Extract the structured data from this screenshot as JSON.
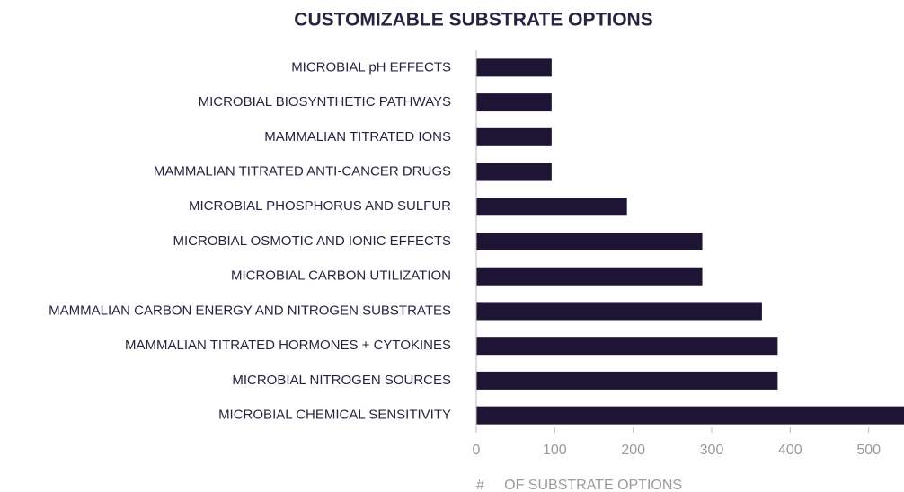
{
  "chart_data": {
    "type": "hbar",
    "title": "CUSTOMIZABLE SUBSTRATE OPTIONS",
    "categories": [
      "MICROBIAL pH EFFECTS",
      "MICROBIAL BIOSYNTHETIC PATHWAYS",
      "MAMMALIAN TITRATED IONS",
      "MAMMALIAN TITRATED ANTI-CANCER DRUGS",
      "MICROBIAL PHOSPHORUS AND SULFUR",
      "MICROBIAL OSMOTIC AND IONIC EFFECTS",
      "MICROBIAL CARBON UTILIZATION",
      "MAMMALIAN CARBON ENERGY AND NITROGEN SUBSTRATES",
      "MAMMALIAN TITRATED HORMONES + CYTOKINES",
      "MICROBIAL NITROGEN SOURCES",
      "MICROBIAL CHEMICAL SENSITIVITY"
    ],
    "values": [
      96,
      96,
      96,
      96,
      192,
      288,
      288,
      364,
      384,
      384,
      545
    ],
    "color": "#1e1535",
    "x_label": "#     OF SUBSTRATE OPTIONS",
    "xlim": [
      0,
      545
    ],
    "xticks": [
      0,
      100,
      200,
      300,
      400,
      500
    ]
  }
}
